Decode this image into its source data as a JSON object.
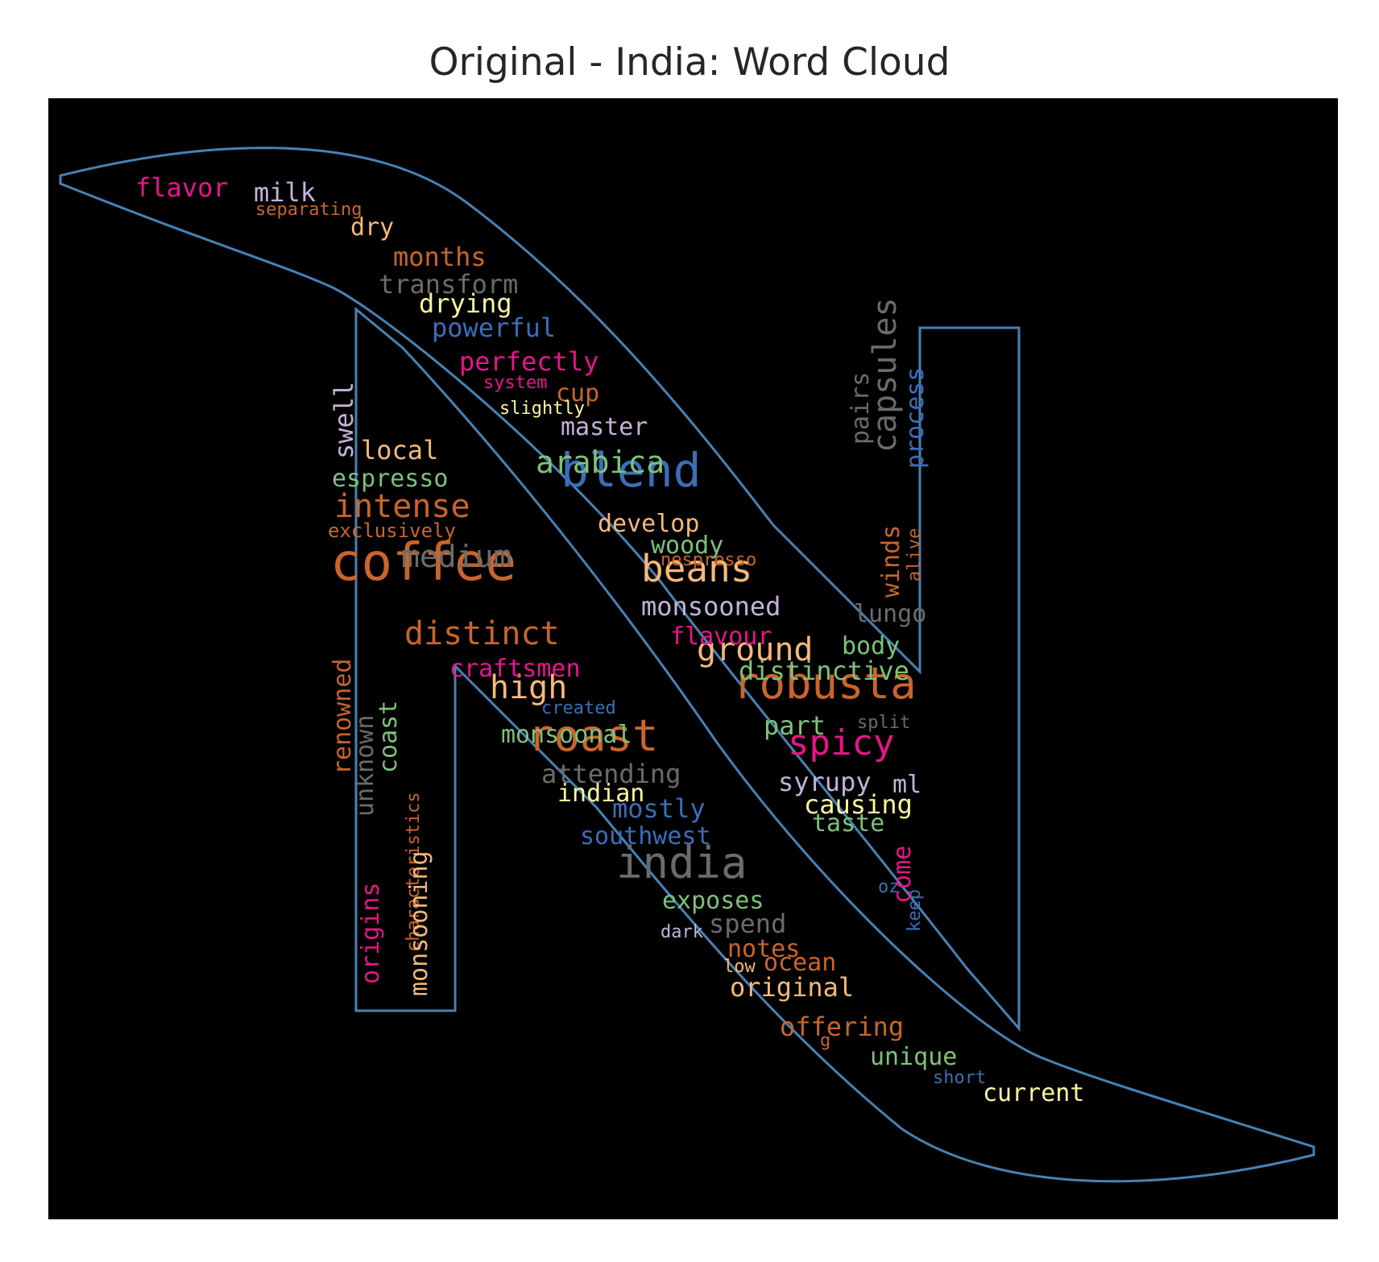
{
  "title": "Original - India: Word Cloud",
  "colors": {
    "background": "#000000",
    "outline": "#4682b4",
    "title_text": "#262626",
    "orange": "#c9652b",
    "peach": "#f5b979",
    "pink": "#e7158a",
    "green": "#7dc27b",
    "gray": "#6b6b6b",
    "lilac": "#c4b2d8",
    "yellow": "#fbf89a",
    "blue": "#3b6eb8"
  },
  "words": [
    {
      "text": "coffee",
      "color": "#c9652b",
      "size": 64
    },
    {
      "text": "blend",
      "color": "#3b6eb8",
      "size": 58
    },
    {
      "text": "roast",
      "color": "#c9652b",
      "size": 54
    },
    {
      "text": "robusta",
      "color": "#c9652b",
      "size": 54
    },
    {
      "text": "india",
      "color": "#6b6b6b",
      "size": 54
    },
    {
      "text": "beans",
      "color": "#f5b979",
      "size": 46
    },
    {
      "text": "spicy",
      "color": "#e7158a",
      "size": 44
    },
    {
      "text": "intense",
      "color": "#c9652b",
      "size": 40
    },
    {
      "text": "distinct",
      "color": "#c9652b",
      "size": 40
    },
    {
      "text": "ground",
      "color": "#f5b979",
      "size": 40
    },
    {
      "text": "high",
      "color": "#f5b979",
      "size": 40
    },
    {
      "text": "capsules",
      "color": "#6b6b6b",
      "size": 40
    },
    {
      "text": "arabica",
      "color": "#7dc27b",
      "size": 38
    },
    {
      "text": "medium",
      "color": "#6b6b6b",
      "size": 38
    },
    {
      "text": "perfectly",
      "color": "#e7158a",
      "size": 32
    },
    {
      "text": "monsooned",
      "color": "#c4b2d8",
      "size": 32
    },
    {
      "text": "distinctive",
      "color": "#7dc27b",
      "size": 32
    },
    {
      "text": "craftsmen",
      "color": "#e7158a",
      "size": 30
    },
    {
      "text": "monsoonal",
      "color": "#7dc27b",
      "size": 30
    },
    {
      "text": "powerful",
      "color": "#3b6eb8",
      "size": 32
    },
    {
      "text": "transform",
      "color": "#6b6b6b",
      "size": 32
    },
    {
      "text": "months",
      "color": "#c9652b",
      "size": 32
    },
    {
      "text": "drying",
      "color": "#fbf89a",
      "size": 32
    },
    {
      "text": "flavor",
      "color": "#e7158a",
      "size": 32
    },
    {
      "text": "milk",
      "color": "#c4b2d8",
      "size": 32
    },
    {
      "text": "dry",
      "color": "#f5b979",
      "size": 30
    },
    {
      "text": "local",
      "color": "#f5b979",
      "size": 32
    },
    {
      "text": "espresso",
      "color": "#7dc27b",
      "size": 30
    },
    {
      "text": "develop",
      "color": "#f5b979",
      "size": 30
    },
    {
      "text": "woody",
      "color": "#7dc27b",
      "size": 30
    },
    {
      "text": "flavour",
      "color": "#e7158a",
      "size": 30
    },
    {
      "text": "part",
      "color": "#7dc27b",
      "size": 32
    },
    {
      "text": "syrupy",
      "color": "#c4b2d8",
      "size": 32
    },
    {
      "text": "causing",
      "color": "#fbf89a",
      "size": 32
    },
    {
      "text": "taste",
      "color": "#7dc27b",
      "size": 30
    },
    {
      "text": "attending",
      "color": "#6b6b6b",
      "size": 32
    },
    {
      "text": "indian",
      "color": "#fbf89a",
      "size": 30
    },
    {
      "text": "mostly",
      "color": "#3b6eb8",
      "size": 32
    },
    {
      "text": "southwest",
      "color": "#3b6eb8",
      "size": 30
    },
    {
      "text": "exposes",
      "color": "#7dc27b",
      "size": 30
    },
    {
      "text": "spend",
      "color": "#6b6b6b",
      "size": 32
    },
    {
      "text": "notes",
      "color": "#c9652b",
      "size": 30
    },
    {
      "text": "ocean",
      "color": "#c9652b",
      "size": 30
    },
    {
      "text": "original",
      "color": "#f5b979",
      "size": 32
    },
    {
      "text": "offering",
      "color": "#c9652b",
      "size": 32
    },
    {
      "text": "unique",
      "color": "#7dc27b",
      "size": 30
    },
    {
      "text": "current",
      "color": "#fbf89a",
      "size": 30
    },
    {
      "text": "master",
      "color": "#c4b2d8",
      "size": 30
    },
    {
      "text": "cup",
      "color": "#c9652b",
      "size": 30
    },
    {
      "text": "lungo",
      "color": "#6b6b6b",
      "size": 30
    },
    {
      "text": "body",
      "color": "#7dc27b",
      "size": 30
    },
    {
      "text": "ml",
      "color": "#c4b2d8",
      "size": 30
    },
    {
      "text": "separating",
      "color": "#c9652b",
      "size": 22
    },
    {
      "text": "system",
      "color": "#e7158a",
      "size": 22
    },
    {
      "text": "slightly",
      "color": "#fbf89a",
      "size": 22
    },
    {
      "text": "exclusively",
      "color": "#c9652b",
      "size": 24
    },
    {
      "text": "nespresso",
      "color": "#c9652b",
      "size": 22
    },
    {
      "text": "created",
      "color": "#3b6eb8",
      "size": 22
    },
    {
      "text": "split",
      "color": "#6b6b6b",
      "size": 22
    },
    {
      "text": "dark",
      "color": "#c4b2d8",
      "size": 22
    },
    {
      "text": "low",
      "color": "#f5b979",
      "size": 22
    },
    {
      "text": "g",
      "color": "#c9652b",
      "size": 22
    },
    {
      "text": "short",
      "color": "#3b6eb8",
      "size": 22
    },
    {
      "text": "oz",
      "color": "#3b6eb8",
      "size": 22
    },
    {
      "text": "swell",
      "color": "#c4b2d8",
      "size": 32
    },
    {
      "text": "renowned",
      "color": "#c9652b",
      "size": 30
    },
    {
      "text": "unknown",
      "color": "#6b6b6b",
      "size": 30
    },
    {
      "text": "coast",
      "color": "#7dc27b",
      "size": 30
    },
    {
      "text": "characteristics",
      "color": "#c9652b",
      "size": 22
    },
    {
      "text": "origins",
      "color": "#e7158a",
      "size": 30
    },
    {
      "text": "monsooning",
      "color": "#f5b979",
      "size": 30
    },
    {
      "text": "pairs",
      "color": "#6b6b6b",
      "size": 30
    },
    {
      "text": "process",
      "color": "#3b6eb8",
      "size": 30
    },
    {
      "text": "winds",
      "color": "#c9652b",
      "size": 30
    },
    {
      "text": "alive",
      "color": "#c9652b",
      "size": 22
    },
    {
      "text": "come",
      "color": "#e7158a",
      "size": 30
    },
    {
      "text": "keep",
      "color": "#3b6eb8",
      "size": 22
    }
  ]
}
